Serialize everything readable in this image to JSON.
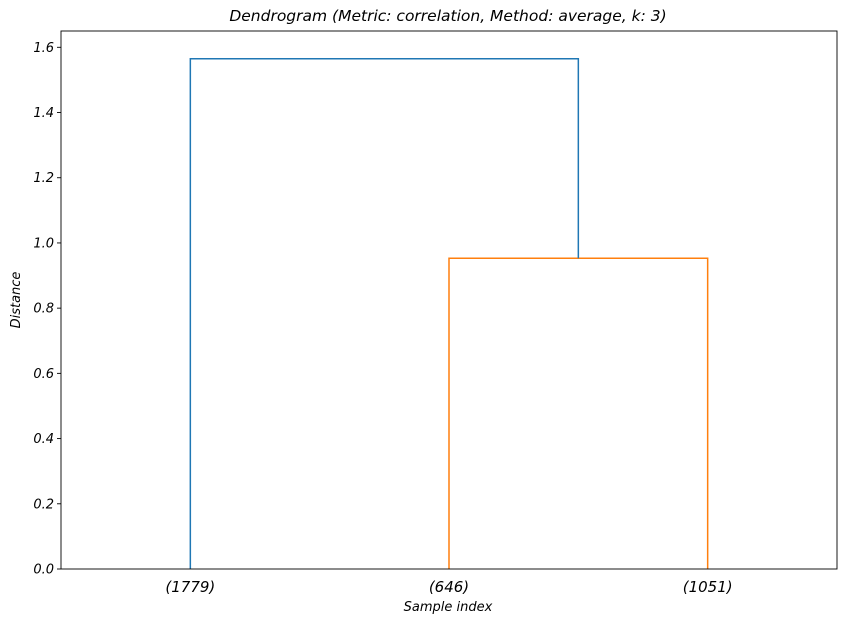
{
  "chart_data": {
    "type": "dendrogram",
    "title": "Dendrogram (Metric: correlation, Method: average, k: 3)",
    "xlabel": "Sample index",
    "ylabel": "Distance",
    "ylim": [
      0,
      1.65
    ],
    "y_ticks": [
      0.0,
      0.2,
      0.4,
      0.6,
      0.8,
      1.0,
      1.2,
      1.4,
      1.6
    ],
    "y_tick_labels": [
      "0.0",
      "0.2",
      "0.4",
      "0.6",
      "0.8",
      "1.0",
      "1.2",
      "1.4",
      "1.6"
    ],
    "grid": false,
    "leaves": [
      {
        "label": "(1779)",
        "size": 1779
      },
      {
        "label": "(646)",
        "size": 646
      },
      {
        "label": "(1051)",
        "size": 1051
      }
    ],
    "merges": [
      {
        "left": 1,
        "right": 2,
        "height": 0.953,
        "color": "#ff7f0e"
      },
      {
        "left": 0,
        "right": "merge-0",
        "height": 1.565,
        "color": "#1f77b4"
      }
    ]
  }
}
